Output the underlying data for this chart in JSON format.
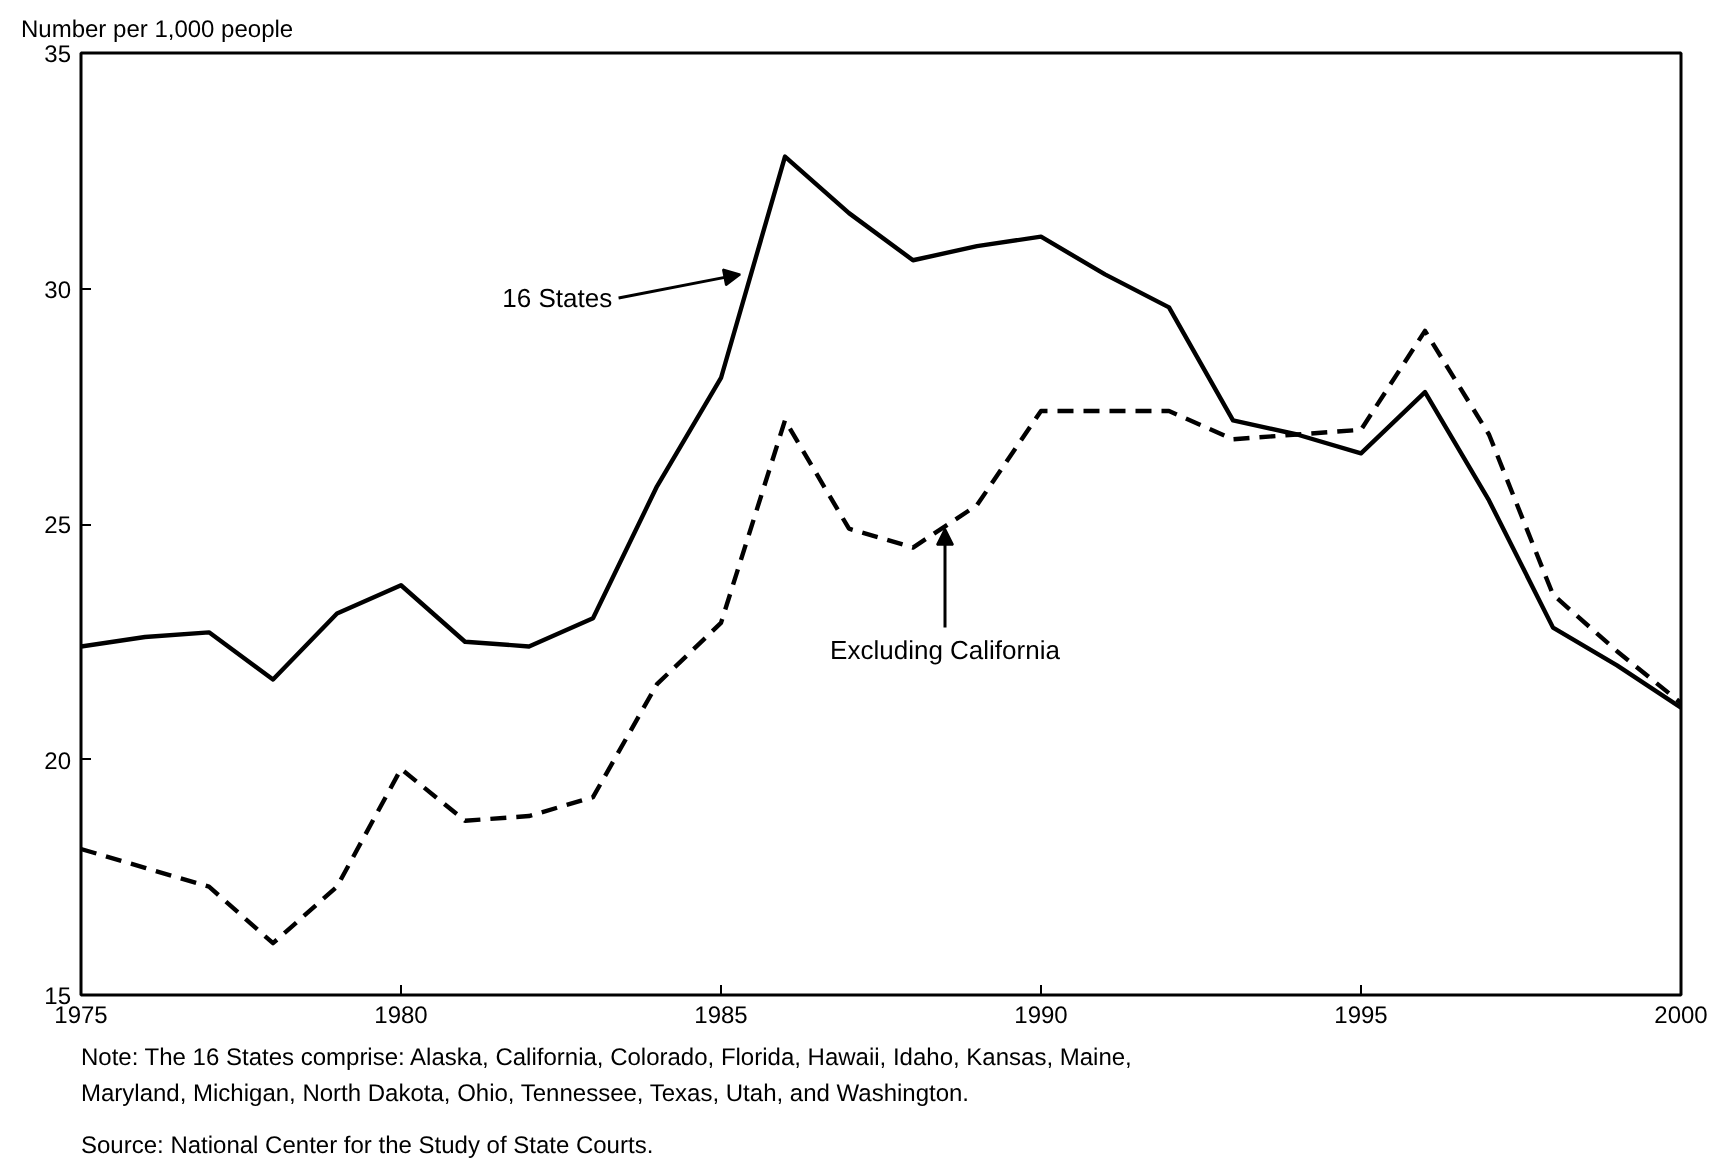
{
  "chart_data": {
    "type": "line",
    "ylabel": "Number per 1,000 people",
    "x": [
      1975,
      1976,
      1977,
      1978,
      1979,
      1980,
      1981,
      1982,
      1983,
      1984,
      1985,
      1986,
      1987,
      1988,
      1989,
      1990,
      1991,
      1992,
      1993,
      1994,
      1995,
      1996,
      1997,
      1998,
      1999,
      2000
    ],
    "series": [
      {
        "color": "#000000",
        "line_style": "solid",
        "values": [
          22.4,
          22.6,
          22.7,
          21.7,
          23.1,
          23.7,
          22.5,
          22.4,
          23.0,
          25.8,
          28.1,
          32.8,
          31.6,
          30.6,
          30.9,
          31.1,
          30.3,
          29.6,
          27.2,
          26.9,
          26.5,
          27.8,
          25.5,
          22.8,
          22.0,
          21.1
        ]
      },
      {
        "color": "#000000",
        "line_style": "dashed",
        "values": [
          18.1,
          17.7,
          17.3,
          16.1,
          17.3,
          19.8,
          18.7,
          18.8,
          19.2,
          21.6,
          22.9,
          27.2,
          24.9,
          24.5,
          25.4,
          27.4,
          27.4,
          27.4,
          26.8,
          26.9,
          27.0,
          29.1,
          26.9,
          23.5,
          22.3,
          21.2
        ]
      }
    ],
    "xlim": [
      1975,
      2000
    ],
    "xticks": [
      1975,
      1980,
      1985,
      1990,
      1995,
      2000
    ],
    "ylim": [
      15,
      35
    ],
    "yticks": [
      15,
      20,
      25,
      30,
      35
    ],
    "grid": false,
    "annotations": [
      {
        "text": "16 States",
        "x": 1985.3,
        "y": 30.3
      },
      {
        "text": "Excluding California",
        "x": 1988.5,
        "y": 24.9
      },
      "Note: The 16 States comprise: Alaska, California, Colorado, Florida, Hawaii, Idaho, Kansas, Maine, Maryland, Michigan, North Dakota, Ohio, Tennessee, Texas, Utah, and Washington.",
      "Source: National Center for the Study of State Courts."
    ]
  }
}
